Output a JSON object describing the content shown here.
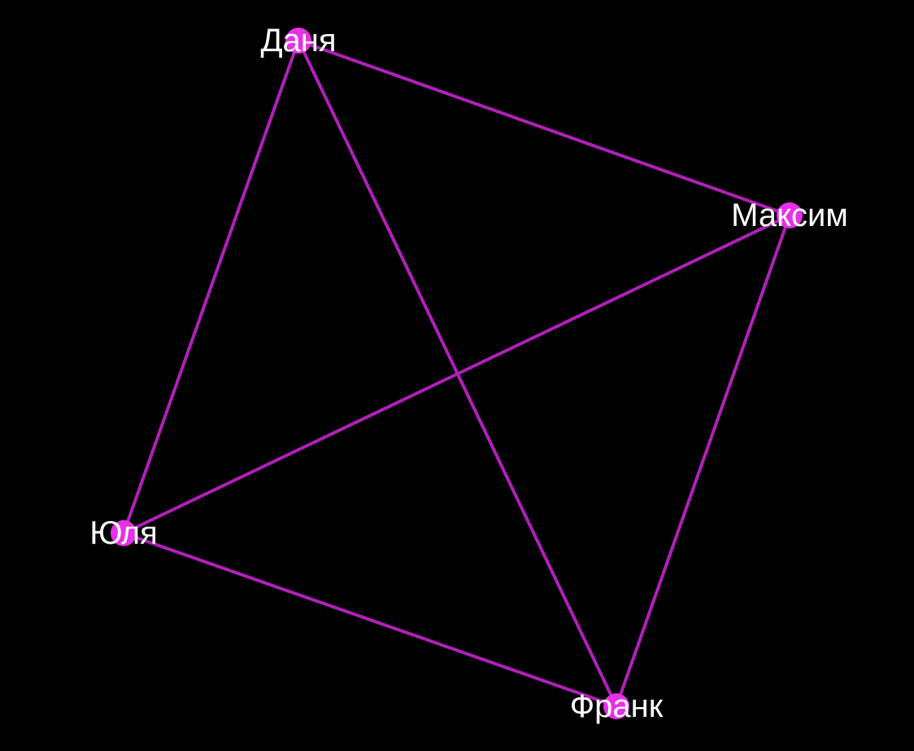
{
  "colors": {
    "background": "#000000",
    "edge": "#b020b8",
    "node": "#e830e8",
    "label": "#ffffff"
  },
  "graph": {
    "nodes": [
      {
        "id": "danya",
        "label": "Даня"
      },
      {
        "id": "maksim",
        "label": "Максим"
      },
      {
        "id": "yulya",
        "label": "Юля"
      },
      {
        "id": "frank",
        "label": "Франк"
      }
    ],
    "edges": [
      {
        "source": "danya",
        "target": "maksim"
      },
      {
        "source": "danya",
        "target": "yulya"
      },
      {
        "source": "danya",
        "target": "frank"
      },
      {
        "source": "maksim",
        "target": "yulya"
      },
      {
        "source": "maksim",
        "target": "frank"
      },
      {
        "source": "yulya",
        "target": "frank"
      }
    ]
  }
}
